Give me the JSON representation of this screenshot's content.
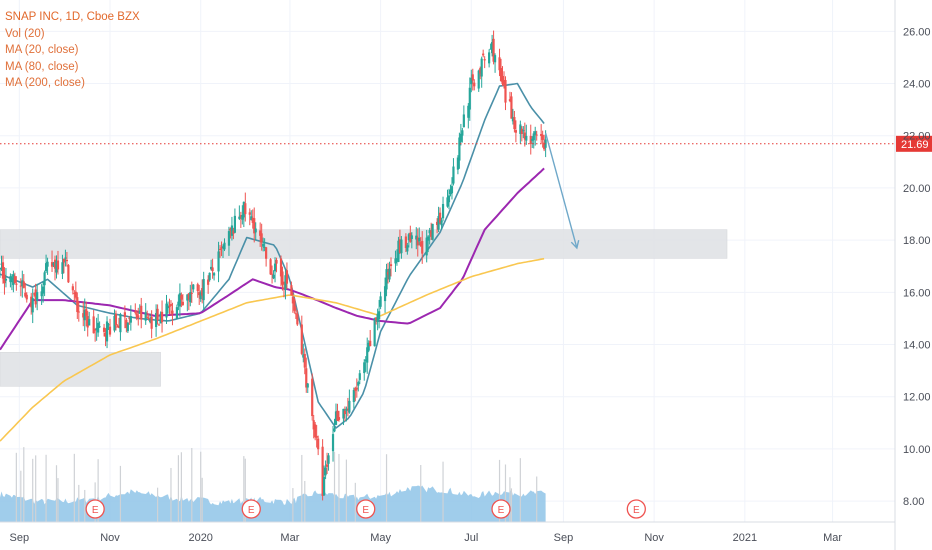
{
  "legend": {
    "title": "SNAP INC, 1D, Cboe BZX",
    "items": [
      "Vol (20)",
      "MA (20, close)",
      "MA (80, close)",
      "MA (200, close)"
    ]
  },
  "colors": {
    "up": "#26a69a",
    "down": "#ef5350",
    "candle_neutral": "#d0d3d6",
    "ma20": "#4a90a8",
    "ma80": "#9c27b0",
    "ma200": "#f9c750",
    "volume": "#8fc4e8",
    "zone": "#e1e3e6",
    "price_line": "#e53935",
    "arrow": "#6fa8c9",
    "earnings_marker": "#ef5350",
    "axis_text": "#4a4e58"
  },
  "icons": {
    "earnings": "circle-E-icon"
  },
  "chart_data": {
    "type": "line",
    "title": "SNAP INC, 1D, Cboe BZX",
    "xlabel": "",
    "ylabel": "",
    "ylim": [
      7.2,
      27.2
    ],
    "yticks": [
      "8.00",
      "10.00",
      "12.00",
      "14.00",
      "16.00",
      "18.00",
      "20.00",
      "22.00",
      "24.00",
      "26.00"
    ],
    "xticks": [
      "Sep",
      "Nov",
      "2020",
      "Mar",
      "May",
      "Jul",
      "Sep",
      "Nov",
      "2021",
      "Mar"
    ],
    "last_price": "21.69",
    "price_x": [
      "2019-08-19",
      "2019-09-01",
      "2019-09-10",
      "2019-09-20",
      "2019-10-01",
      "2019-10-10",
      "2019-10-22",
      "2019-11-01",
      "2019-11-10",
      "2019-11-20",
      "2019-12-01",
      "2019-12-10",
      "2019-12-20",
      "2020-01-01",
      "2020-01-10",
      "2020-01-20",
      "2020-01-29",
      "2020-02-06",
      "2020-02-15",
      "2020-02-24",
      "2020-03-01",
      "2020-03-10",
      "2020-03-18",
      "2020-03-23",
      "2020-04-01",
      "2020-04-10",
      "2020-04-20",
      "2020-05-01",
      "2020-05-10",
      "2020-05-20",
      "2020-06-01",
      "2020-06-10",
      "2020-06-20",
      "2020-06-26",
      "2020-07-01",
      "2020-07-07",
      "2020-07-15",
      "2020-07-24",
      "2020-08-01",
      "2020-08-10",
      "2020-08-20"
    ],
    "price_y": [
      16.8,
      16.3,
      15.6,
      16.9,
      17.4,
      15.4,
      14.5,
      14.7,
      14.9,
      15.1,
      14.9,
      15.4,
      15.8,
      16.1,
      16.9,
      18.1,
      19.2,
      18.6,
      17.1,
      16.6,
      16.2,
      13.4,
      10.6,
      8.4,
      11.3,
      11.6,
      13.1,
      15.7,
      17.6,
      17.9,
      17.8,
      18.9,
      20.7,
      22.7,
      23.9,
      24.6,
      25.4,
      23.4,
      22.3,
      21.9,
      21.69
    ],
    "series": [
      {
        "name": "MA (20, close)",
        "x": [
          "2019-08-19",
          "2019-09-10",
          "2019-09-20",
          "2019-10-10",
          "2019-11-01",
          "2019-11-20",
          "2019-12-10",
          "2020-01-01",
          "2020-01-20",
          "2020-02-01",
          "2020-02-20",
          "2020-03-01",
          "2020-03-10",
          "2020-03-20",
          "2020-04-01",
          "2020-04-10",
          "2020-04-20",
          "2020-05-01",
          "2020-05-20",
          "2020-06-10",
          "2020-06-25",
          "2020-07-10",
          "2020-07-20",
          "2020-08-01",
          "2020-08-10",
          "2020-08-20"
        ],
        "values": [
          16.7,
          16.2,
          16.5,
          15.5,
          15.2,
          15.0,
          14.9,
          15.2,
          16.5,
          18.1,
          17.8,
          16.5,
          14.3,
          11.8,
          10.8,
          11.2,
          12.2,
          14.5,
          16.6,
          18.3,
          20.2,
          22.6,
          23.9,
          24.0,
          23.1,
          22.4
        ]
      },
      {
        "name": "MA (80, close)",
        "x": [
          "2019-08-19",
          "2019-09-10",
          "2019-10-01",
          "2019-11-01",
          "2019-12-01",
          "2020-01-01",
          "2020-01-20",
          "2020-02-05",
          "2020-02-20",
          "2020-03-01",
          "2020-03-15",
          "2020-04-01",
          "2020-04-15",
          "2020-05-01",
          "2020-05-20",
          "2020-06-10",
          "2020-06-25",
          "2020-07-10",
          "2020-08-01",
          "2020-08-20"
        ],
        "values": [
          13.8,
          15.7,
          15.7,
          15.5,
          15.1,
          15.2,
          15.9,
          16.5,
          16.2,
          16.1,
          15.8,
          15.4,
          15.1,
          14.9,
          14.8,
          15.4,
          16.5,
          18.4,
          19.8,
          20.8
        ]
      },
      {
        "name": "MA (200, close)",
        "x": [
          "2019-08-19",
          "2019-09-10",
          "2019-10-01",
          "2019-11-01",
          "2019-12-01",
          "2020-01-01",
          "2020-02-01",
          "2020-03-01",
          "2020-04-01",
          "2020-05-01",
          "2020-06-01",
          "2020-07-01",
          "2020-08-01",
          "2020-08-20"
        ],
        "values": [
          10.3,
          11.6,
          12.6,
          13.6,
          14.2,
          14.9,
          15.6,
          15.9,
          15.6,
          15.1,
          15.9,
          16.6,
          17.1,
          17.3
        ]
      }
    ],
    "volume": {
      "x": [
        "2019-08-19",
        "2019-09-15",
        "2019-10-15",
        "2019-11-15",
        "2019-12-15",
        "2020-01-15",
        "2020-02-10",
        "2020-03-01",
        "2020-03-20",
        "2020-04-10",
        "2020-05-01",
        "2020-05-20",
        "2020-06-15",
        "2020-07-01",
        "2020-07-20",
        "2020-08-20"
      ],
      "values": [
        1.4,
        1.0,
        1.1,
        1.5,
        1.2,
        1.0,
        1.1,
        1.0,
        1.5,
        1.2,
        1.3,
        1.7,
        1.6,
        1.3,
        1.5,
        1.4
      ]
    },
    "earnings": [
      "2019-10-22",
      "2020-02-04",
      "2020-04-21",
      "2020-07-21",
      "2020-10-20"
    ],
    "zones": [
      {
        "x0": "2019-08-19",
        "x1": "2020-12-20",
        "y0": 17.3,
        "y1": 18.4
      },
      {
        "x0": "2019-08-19",
        "x1": "2019-12-05",
        "y0": 12.4,
        "y1": 13.7
      }
    ],
    "projection": {
      "x": [
        "2020-08-20",
        "2020-09-10"
      ],
      "y": [
        22.1,
        17.7
      ]
    },
    "grid": true,
    "legend_position": "top-left"
  }
}
